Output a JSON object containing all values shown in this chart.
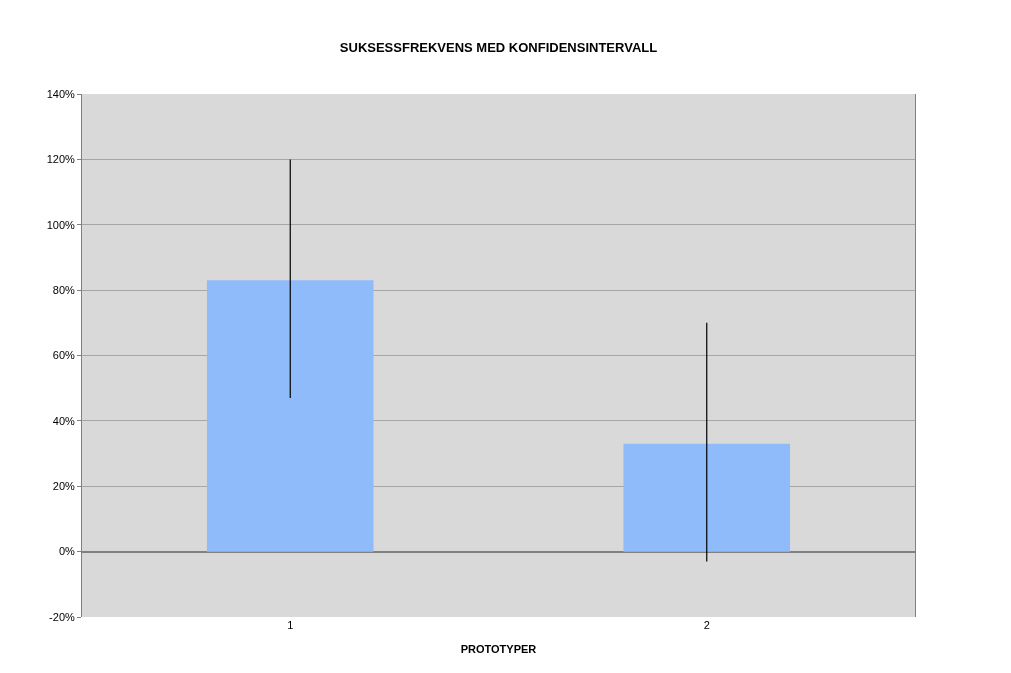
{
  "chart_data": {
    "type": "bar",
    "title": "SUKSESSFREKVENS MED KONFIDENSINTERVALL",
    "xlabel": "PROTOTYPER",
    "categories": [
      "1",
      "2"
    ],
    "values": [
      83,
      33
    ],
    "errors": [
      [
        47,
        120
      ],
      [
        -3,
        70
      ]
    ],
    "color": "#8fbbfb",
    "ylim": [
      -20,
      140
    ],
    "yticks": [
      {
        "value": -20,
        "label": "-20%"
      },
      {
        "value": 0,
        "label": "0%"
      },
      {
        "value": 20,
        "label": "20%"
      },
      {
        "value": 40,
        "label": "40%"
      },
      {
        "value": 60,
        "label": "60%"
      },
      {
        "value": 80,
        "label": "80%"
      },
      {
        "value": 100,
        "label": "100%"
      },
      {
        "value": 120,
        "label": "120%"
      },
      {
        "value": 140,
        "label": "140%"
      }
    ],
    "grid": "y"
  }
}
